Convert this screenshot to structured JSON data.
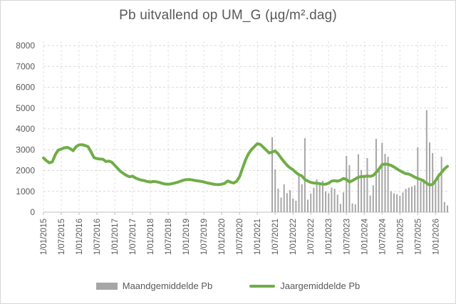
{
  "title": "Pb uitvallend op UM_G (µg/m².dag)",
  "legend": {
    "items": [
      {
        "label": "Maandgemiddelde Pb",
        "type": "bar",
        "color": "#a6a6a6"
      },
      {
        "label": "Jaargemiddelde Pb",
        "type": "line",
        "color": "#70ad47"
      }
    ]
  },
  "colors": {
    "line_green": "#70ad47",
    "bar_gray": "#a6a6a6",
    "text_gray": "#595959",
    "gridline": "#d9d9d9",
    "vertical_gridline": "#e2e2e2",
    "axis_line": "#bfbfbf"
  },
  "chart_data": {
    "type": "bar",
    "subtype": "combo-bar-line",
    "title": "Pb uitvallend op UM_G (µg/m².dag)",
    "xlabel": "",
    "ylabel": "",
    "ylim": [
      0,
      8000
    ],
    "y_ticks": [
      0,
      1000,
      2000,
      3000,
      4000,
      5000,
      6000,
      7000,
      8000
    ],
    "grid": "dashed",
    "legend_position": "bottom",
    "x_is_monthly_from": "1/01/2015",
    "x_tick_labels": [
      "1/01/2015",
      "1/07/2015",
      "1/01/2016",
      "1/07/2016",
      "1/01/2017",
      "1/07/2017",
      "1/01/2018",
      "1/07/2018",
      "1/01/2019",
      "1/07/2019",
      "1/01/2020",
      "1/07/2020",
      "1/01/2021",
      "1/07/2021",
      "1/01/2022",
      "1/07/2022",
      "1/01/2023",
      "1/07/2023",
      "1/01/2024",
      "1/07/2024",
      "1/01/2025",
      "1/07/2025",
      "1/01/2026"
    ],
    "x_tick_label_every_n_months": 6,
    "total_months": 137,
    "series": [
      {
        "name": "Jaargemiddelde Pb",
        "type": "line",
        "color": "#70ad47",
        "start_month_index": 0,
        "values": [
          2600,
          2470,
          2370,
          2420,
          2770,
          2980,
          3030,
          3090,
          3110,
          3050,
          2950,
          3150,
          3230,
          3240,
          3200,
          3150,
          2900,
          2620,
          2570,
          2550,
          2545,
          2430,
          2450,
          2400,
          2250,
          2100,
          1950,
          1850,
          1760,
          1700,
          1730,
          1640,
          1580,
          1540,
          1510,
          1470,
          1450,
          1475,
          1460,
          1430,
          1380,
          1350,
          1340,
          1360,
          1390,
          1430,
          1480,
          1530,
          1560,
          1570,
          1550,
          1520,
          1500,
          1480,
          1450,
          1410,
          1380,
          1350,
          1330,
          1320,
          1340,
          1380,
          1500,
          1440,
          1400,
          1480,
          1700,
          2100,
          2500,
          2800,
          3000,
          3150,
          3290,
          3250,
          3120,
          2980,
          2840,
          2890,
          2940,
          2800,
          2600,
          2420,
          2250,
          2130,
          2040,
          1900,
          1800,
          1740,
          1570,
          1490,
          1430,
          1400,
          1390,
          1370,
          1340,
          1340,
          1390,
          1490,
          1510,
          1490,
          1530,
          1620,
          1570,
          1450,
          1510,
          1600,
          1680,
          1710,
          1710,
          1740,
          1720,
          1760,
          1910,
          2080,
          2280,
          2310,
          2290,
          2250,
          2170,
          2080,
          1990,
          1910,
          1850,
          1830,
          1760,
          1680,
          1620,
          1570,
          1490,
          1390,
          1300,
          1340,
          1510,
          1740,
          1910,
          2080,
          2200
        ]
      },
      {
        "name": "Maandgemiddelde Pb",
        "type": "bar",
        "color": "#a6a6a6",
        "start_month_index": 77,
        "values": [
          3600,
          2050,
          1130,
          700,
          1340,
          910,
          1060,
          660,
          550,
          1850,
          1340,
          3550,
          600,
          890,
          1170,
          1570,
          1400,
          1510,
          1000,
          910,
          1180,
          1120,
          840,
          400,
          950,
          2700,
          2260,
          420,
          380,
          2780,
          2030,
          1690,
          2600,
          800,
          1290,
          3520,
          2040,
          3330,
          2800,
          2660,
          1000,
          900,
          860,
          780,
          950,
          1120,
          1180,
          1230,
          1290,
          3120,
          1460,
          1600,
          4900,
          3350,
          2840,
          1520,
          1860,
          2660,
          490,
          320
        ]
      }
    ]
  }
}
